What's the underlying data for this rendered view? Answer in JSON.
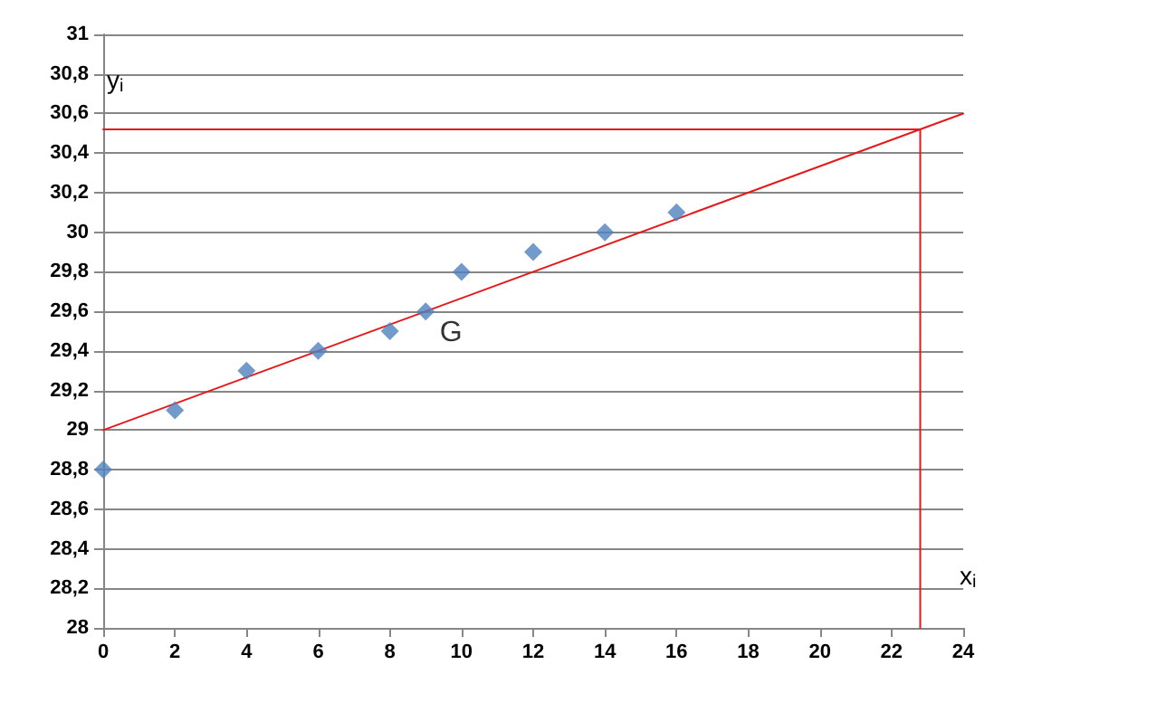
{
  "chart_data": {
    "type": "scatter",
    "xlabel": "x$_{i}$",
    "ylabel": "y$_{i}$",
    "xlim": [
      0,
      24
    ],
    "xticks": [
      0,
      2,
      4,
      6,
      8,
      10,
      12,
      14,
      16,
      18,
      20,
      22,
      24
    ],
    "ylim": [
      28,
      31
    ],
    "yticks": [
      {
        "value": 28,
        "label": "28"
      },
      {
        "value": 28.2,
        "label": "28,2"
      },
      {
        "value": 28.4,
        "label": "28,4"
      },
      {
        "value": 28.6,
        "label": "28,6"
      },
      {
        "value": 28.8,
        "label": "28,8"
      },
      {
        "value": 29,
        "label": "29"
      },
      {
        "value": 29.2,
        "label": "29,2"
      },
      {
        "value": 29.4,
        "label": "29,4"
      },
      {
        "value": 29.6,
        "label": "29,6"
      },
      {
        "value": 29.8,
        "label": "29,8"
      },
      {
        "value": 30,
        "label": "30"
      },
      {
        "value": 30.2,
        "label": "30,2"
      },
      {
        "value": 30.4,
        "label": "30,4"
      },
      {
        "value": 30.6,
        "label": "30,6"
      },
      {
        "value": 30.8,
        "label": "30,8"
      },
      {
        "value": 31,
        "label": "31"
      }
    ],
    "grid": "y",
    "series": [
      {
        "color": "#4f81bd",
        "marker": "diamond",
        "x": [
          0,
          2,
          4,
          6,
          8,
          9,
          10,
          12,
          14,
          16
        ],
        "values": [
          28.8,
          29.1,
          29.3,
          29.4,
          29.5,
          29.6,
          29.8,
          29.9,
          30,
          30.1
        ]
      },
      {
        "type": "line",
        "marker": "none",
        "color": "#e31a1c",
        "x": [
          0,
          24
        ],
        "values": [
          29,
          30.6
        ]
      },
      {
        "type": "line",
        "marker": "none",
        "color": "#e31a1c",
        "x": [
          0,
          22.8,
          22.8
        ],
        "values": [
          30.52,
          30.52,
          28
        ]
      }
    ],
    "annotations": [
      {
        "text": "G",
        "x": 9,
        "y": 29.6
      }
    ]
  }
}
